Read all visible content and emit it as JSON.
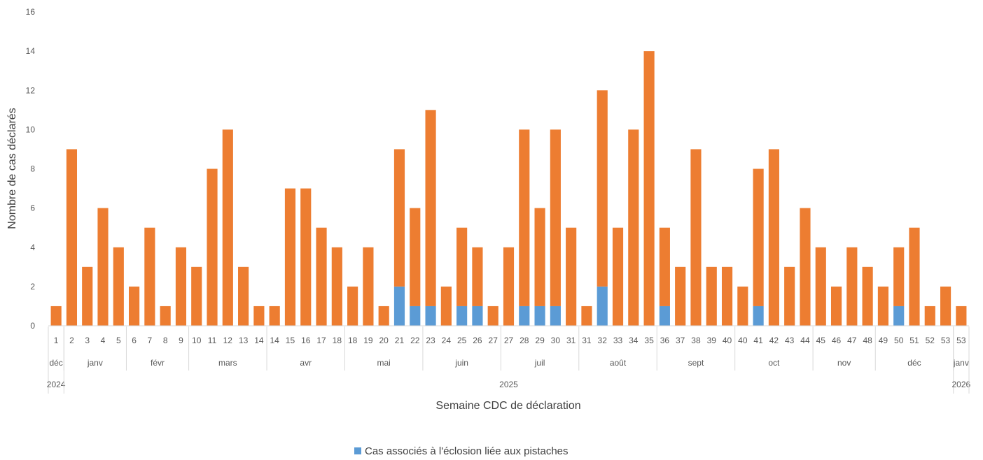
{
  "chart_data": {
    "type": "bar",
    "stacked": true,
    "title": "",
    "xlabel": "Semaine CDC de déclaration",
    "ylabel": "Nombre de cas déclarés",
    "ylim": [
      0,
      16
    ],
    "yticks": [
      0,
      2,
      4,
      6,
      8,
      10,
      12,
      14,
      16
    ],
    "grid": false,
    "legend_position": "bottom",
    "categories": [
      "1",
      "2",
      "3",
      "4",
      "5",
      "6",
      "7",
      "8",
      "9",
      "10",
      "11",
      "12",
      "13",
      "14",
      "14",
      "15",
      "16",
      "17",
      "18",
      "18",
      "19",
      "20",
      "21",
      "22",
      "23",
      "24",
      "25",
      "26",
      "27",
      "27",
      "28",
      "29",
      "30",
      "31",
      "31",
      "32",
      "33",
      "34",
      "35",
      "36",
      "37",
      "38",
      "39",
      "40",
      "40",
      "41",
      "42",
      "43",
      "44",
      "45",
      "46",
      "47",
      "48",
      "49",
      "50",
      "51",
      "52",
      "53",
      "53"
    ],
    "series": [
      {
        "name": "Cas associés à l'éclosion liée aux pistaches",
        "color": "#5B9BD5",
        "values": [
          0,
          0,
          0,
          0,
          0,
          0,
          0,
          0,
          0,
          0,
          0,
          0,
          0,
          0,
          0,
          0,
          0,
          0,
          0,
          0,
          0,
          0,
          2,
          1,
          1,
          0,
          1,
          1,
          0,
          0,
          1,
          1,
          1,
          0,
          0,
          2,
          0,
          0,
          0,
          1,
          0,
          0,
          0,
          0,
          0,
          1,
          0,
          0,
          0,
          0,
          0,
          0,
          0,
          0,
          1,
          0,
          0,
          0,
          0
        ]
      },
      {
        "color": "#ED7D31",
        "values": [
          1,
          9,
          3,
          6,
          4,
          2,
          5,
          1,
          4,
          3,
          8,
          10,
          3,
          1,
          1,
          7,
          7,
          5,
          4,
          2,
          4,
          1,
          7,
          5,
          10,
          2,
          4,
          3,
          1,
          4,
          9,
          5,
          9,
          5,
          1,
          10,
          5,
          10,
          14,
          4,
          3,
          9,
          3,
          3,
          2,
          7,
          9,
          3,
          6,
          4,
          2,
          4,
          3,
          2,
          3,
          5,
          1,
          2,
          1
        ]
      }
    ],
    "months": [
      {
        "label": "déc",
        "count": 1
      },
      {
        "label": "janv",
        "count": 4
      },
      {
        "label": "févr",
        "count": 4
      },
      {
        "label": "mars",
        "count": 5
      },
      {
        "label": "avr",
        "count": 5
      },
      {
        "label": "mai",
        "count": 5
      },
      {
        "label": "juin",
        "count": 5
      },
      {
        "label": "juil",
        "count": 5
      },
      {
        "label": "août",
        "count": 5
      },
      {
        "label": "sept",
        "count": 5
      },
      {
        "label": "oct",
        "count": 5
      },
      {
        "label": "nov",
        "count": 4
      },
      {
        "label": "déc",
        "count": 5
      },
      {
        "label": "janv",
        "count": 1
      }
    ],
    "years": [
      {
        "label": "2024",
        "count": 1
      },
      {
        "label": "2025",
        "count": 57
      },
      {
        "label": "2026",
        "count": 1
      }
    ]
  }
}
